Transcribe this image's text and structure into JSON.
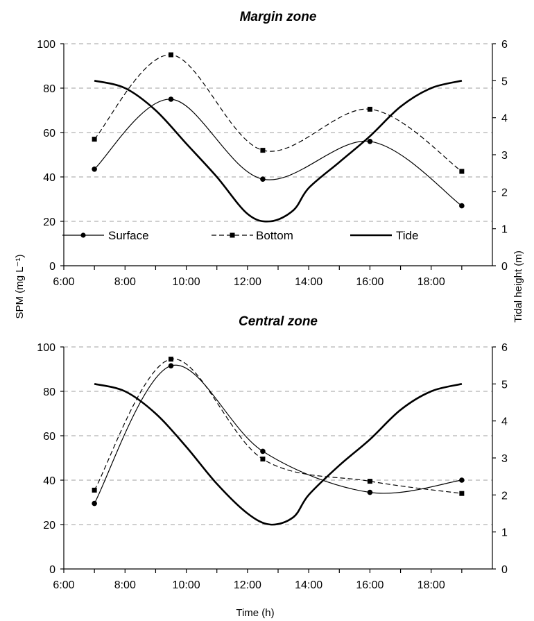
{
  "figure": {
    "shared_ylabel_left": "SPM (mg L⁻¹)",
    "shared_ylabel_right": "Tidal height (m)",
    "shared_xlabel": "Time (h)"
  },
  "legend": {
    "surface": "Surface",
    "bottom": "Bottom",
    "tide": "Tide"
  },
  "chart_data": [
    {
      "type": "line",
      "title": "Margin zone",
      "x_ticks": [
        "6:00",
        "8:00",
        "10:00",
        "12:00",
        "14:00",
        "16:00",
        "18:00"
      ],
      "xlim_hours": [
        6,
        20
      ],
      "ylim_left": [
        0,
        100
      ],
      "y_ticks_left": [
        "0",
        "20",
        "40",
        "60",
        "80",
        "100"
      ],
      "ylim_right": [
        0,
        6
      ],
      "y_ticks_right": [
        "0",
        "1",
        "2",
        "3",
        "4",
        "5",
        "6"
      ],
      "grid": "horizontal dashed",
      "legend_position": "bottom-inside",
      "series": [
        {
          "name": "Surface",
          "axis": "left",
          "x": [
            "7:00",
            "9:30",
            "12:30",
            "16:00",
            "19:00"
          ],
          "y": [
            43.5,
            75,
            39,
            56,
            27
          ]
        },
        {
          "name": "Bottom",
          "axis": "left",
          "x": [
            "7:00",
            "9:30",
            "12:30",
            "16:00",
            "19:00"
          ],
          "y": [
            57,
            95,
            52,
            70.5,
            42.5
          ]
        },
        {
          "name": "Tide",
          "axis": "right",
          "x": [
            "7:00",
            "8:00",
            "9:00",
            "10:00",
            "11:00",
            "12:00",
            "12:45",
            "13:30",
            "14:00",
            "15:00",
            "16:00",
            "17:00",
            "18:00",
            "19:00"
          ],
          "y": [
            5.0,
            4.8,
            4.2,
            3.3,
            2.4,
            1.4,
            1.2,
            1.5,
            2.1,
            2.8,
            3.5,
            4.3,
            4.8,
            5.0
          ]
        }
      ]
    },
    {
      "type": "line",
      "title": "Central zone",
      "x_ticks": [
        "6:00",
        "8:00",
        "10:00",
        "12:00",
        "14:00",
        "16:00",
        "18:00"
      ],
      "xlim_hours": [
        6,
        20
      ],
      "ylim_left": [
        0,
        100
      ],
      "y_ticks_left": [
        "0",
        "20",
        "40",
        "60",
        "80",
        "100"
      ],
      "ylim_right": [
        0,
        6
      ],
      "y_ticks_right": [
        "0",
        "1",
        "2",
        "3",
        "4",
        "5",
        "6"
      ],
      "xlabel": "Time (h)",
      "grid": "horizontal dashed",
      "series": [
        {
          "name": "Surface",
          "axis": "left",
          "x": [
            "7:00",
            "9:30",
            "12:30",
            "16:00",
            "19:00"
          ],
          "y": [
            29.5,
            91.5,
            53,
            34.5,
            40
          ]
        },
        {
          "name": "Bottom",
          "axis": "left",
          "x": [
            "7:00",
            "9:30",
            "12:30",
            "16:00",
            "19:00"
          ],
          "y": [
            35.5,
            94.5,
            49.5,
            39.5,
            34
          ]
        },
        {
          "name": "Tide",
          "axis": "right",
          "x": [
            "7:00",
            "8:00",
            "9:00",
            "10:00",
            "11:00",
            "12:00",
            "12:45",
            "13:30",
            "14:00",
            "15:00",
            "16:00",
            "17:00",
            "18:00",
            "19:00"
          ],
          "y": [
            5.0,
            4.8,
            4.2,
            3.3,
            2.3,
            1.5,
            1.2,
            1.4,
            2.0,
            2.8,
            3.5,
            4.3,
            4.8,
            5.0
          ]
        }
      ]
    }
  ]
}
